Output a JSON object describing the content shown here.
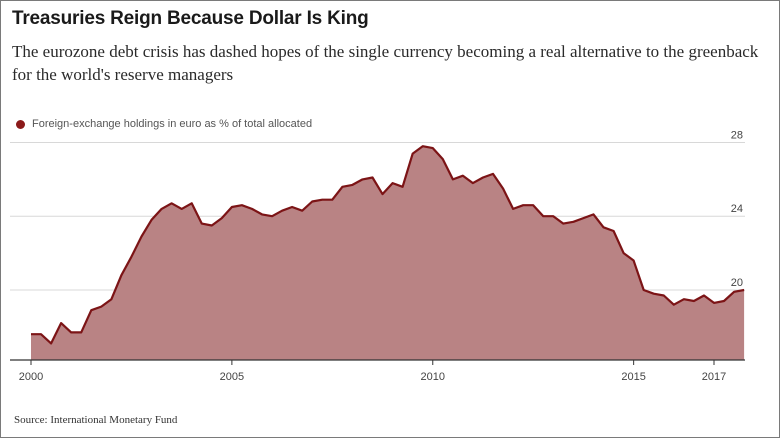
{
  "title": "Treasuries Reign Because Dollar Is King",
  "subtitle": "The eurozone debt crisis has dashed hopes of the single currency becoming a real alternative to the greenback for the world's reserve managers",
  "legend_label": "Foreign-exchange holdings in euro as % of total allocated",
  "source": "Source: International Monetary Fund",
  "colors": {
    "line": "#7c1416",
    "fill": "#b98384",
    "grid": "#d8d8d8",
    "axis": "#333333"
  },
  "chart_data": {
    "type": "area",
    "title": "",
    "xlabel": "",
    "ylabel": "",
    "x_ticks": [
      2000,
      2005,
      2010,
      2015,
      2017
    ],
    "y_ticks": [
      20,
      24,
      28
    ],
    "xlim": [
      2000,
      2017.75
    ],
    "ylim": [
      16.2,
      28.3
    ],
    "series": [
      {
        "name": "Foreign-exchange holdings in euro as % of total allocated",
        "x": [
          2000.0,
          2000.25,
          2000.5,
          2000.75,
          2001.0,
          2001.25,
          2001.5,
          2001.75,
          2002.0,
          2002.25,
          2002.5,
          2002.75,
          2003.0,
          2003.25,
          2003.5,
          2003.75,
          2004.0,
          2004.25,
          2004.5,
          2004.75,
          2005.0,
          2005.25,
          2005.5,
          2005.75,
          2006.0,
          2006.25,
          2006.5,
          2006.75,
          2007.0,
          2007.25,
          2007.5,
          2007.75,
          2008.0,
          2008.25,
          2008.5,
          2008.75,
          2009.0,
          2009.25,
          2009.5,
          2009.75,
          2010.0,
          2010.25,
          2010.5,
          2010.75,
          2011.0,
          2011.25,
          2011.5,
          2011.75,
          2012.0,
          2012.25,
          2012.5,
          2012.75,
          2013.0,
          2013.25,
          2013.5,
          2013.75,
          2014.0,
          2014.25,
          2014.5,
          2014.75,
          2015.0,
          2015.25,
          2015.5,
          2015.75,
          2016.0,
          2016.25,
          2016.5,
          2016.75,
          2017.0,
          2017.25,
          2017.5,
          2017.75
        ],
        "values": [
          17.6,
          17.6,
          17.1,
          18.2,
          17.7,
          17.7,
          18.9,
          19.1,
          19.5,
          20.8,
          21.8,
          22.9,
          23.8,
          24.4,
          24.7,
          24.4,
          24.7,
          23.6,
          23.5,
          23.9,
          24.5,
          24.6,
          24.4,
          24.1,
          24.0,
          24.3,
          24.5,
          24.3,
          24.8,
          24.9,
          24.9,
          25.6,
          25.7,
          26.0,
          26.1,
          25.2,
          25.8,
          25.6,
          27.4,
          27.8,
          27.7,
          27.1,
          26.0,
          26.2,
          25.8,
          26.1,
          26.3,
          25.5,
          24.4,
          24.6,
          24.6,
          24.0,
          24.0,
          23.6,
          23.7,
          23.9,
          24.1,
          23.4,
          23.2,
          22.0,
          21.6,
          20.0,
          19.8,
          19.7,
          19.2,
          19.5,
          19.4,
          19.7,
          19.3,
          19.4,
          19.9,
          20.0
        ]
      }
    ],
    "grid": true,
    "y_axis_position": "right",
    "legend_position": "top-left"
  }
}
